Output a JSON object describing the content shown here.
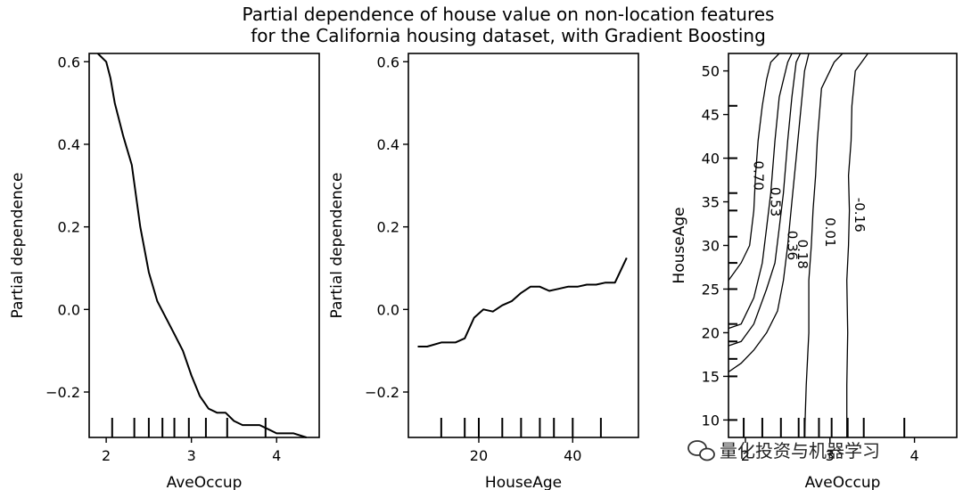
{
  "title_line1": "Partial dependence of house value on non-location features",
  "title_line2": "for the California housing dataset, with Gradient Boosting",
  "watermark": "量化投资与机器学习",
  "chart_data": [
    {
      "type": "line",
      "xlabel": "AveOccup",
      "ylabel": "Partial dependence",
      "xlim": [
        1.8,
        4.5
      ],
      "ylim": [
        -0.31,
        0.62
      ],
      "xticks": [
        "2",
        "3",
        "4"
      ],
      "yticks": [
        "−0.2",
        "0.0",
        "0.2",
        "0.4",
        "0.6"
      ],
      "x": [
        1.9,
        2.0,
        2.05,
        2.1,
        2.2,
        2.3,
        2.4,
        2.5,
        2.6,
        2.7,
        2.8,
        2.9,
        3.0,
        3.1,
        3.2,
        3.3,
        3.4,
        3.5,
        3.6,
        3.8,
        3.9,
        4.0,
        4.2,
        4.35
      ],
      "y": [
        0.62,
        0.6,
        0.56,
        0.5,
        0.42,
        0.35,
        0.2,
        0.09,
        0.02,
        -0.02,
        -0.06,
        -0.1,
        -0.16,
        -0.21,
        -0.24,
        -0.25,
        -0.25,
        -0.27,
        -0.28,
        -0.28,
        -0.29,
        -0.3,
        -0.3,
        -0.31
      ],
      "rug": [
        2.07,
        2.33,
        2.5,
        2.66,
        2.8,
        2.97,
        3.17,
        3.42,
        3.87
      ]
    },
    {
      "type": "line",
      "xlabel": "HouseAge",
      "ylabel": "Partial dependence",
      "xlim": [
        5,
        54
      ],
      "ylim": [
        -0.31,
        0.62
      ],
      "xticks": [
        "20",
        "40"
      ],
      "yticks": [
        "−0.2",
        "0.0",
        "0.2",
        "0.4",
        "0.6"
      ],
      "x": [
        7,
        9,
        12,
        15,
        17,
        19,
        21,
        23,
        25,
        27,
        29,
        31,
        33,
        35,
        37,
        39,
        41,
        43,
        45,
        47,
        49,
        51.5
      ],
      "y": [
        -0.09,
        -0.09,
        -0.08,
        -0.08,
        -0.07,
        -0.02,
        0.0,
        -0.005,
        0.01,
        0.02,
        0.04,
        0.055,
        0.055,
        0.045,
        0.05,
        0.055,
        0.055,
        0.06,
        0.06,
        0.065,
        0.065,
        0.125
      ],
      "rug": [
        12,
        17,
        20,
        25,
        29,
        33,
        36,
        40,
        46
      ]
    },
    {
      "type": "contour",
      "xlabel": "AveOccup",
      "ylabel": "HouseAge",
      "xlim": [
        1.8,
        4.5
      ],
      "ylim": [
        8,
        52
      ],
      "xticks": [
        "2",
        "3",
        "4"
      ],
      "yticks": [
        "10",
        "15",
        "20",
        "25",
        "30",
        "35",
        "40",
        "45",
        "50"
      ],
      "levels": [
        "0.70",
        "0.53",
        "0.36",
        "0.18",
        "0.01",
        "-0.16"
      ],
      "contours": [
        {
          "x": [
            1.8,
            1.95,
            2.05,
            2.1,
            2.12,
            2.15,
            2.2,
            2.25,
            2.3,
            2.4
          ],
          "y": [
            26,
            28,
            30,
            34,
            38,
            42,
            46,
            49,
            51,
            52
          ]
        },
        {
          "x": [
            1.8,
            1.95,
            2.1,
            2.2,
            2.25,
            2.3,
            2.35,
            2.4,
            2.5,
            2.55
          ],
          "y": [
            20.5,
            21,
            24,
            28,
            32,
            36,
            42,
            47,
            51,
            52
          ]
        },
        {
          "x": [
            1.8,
            1.95,
            2.1,
            2.25,
            2.35,
            2.4,
            2.45,
            2.5,
            2.55,
            2.6,
            2.65
          ],
          "y": [
            18.5,
            19,
            21,
            25,
            28,
            32,
            36,
            42,
            47,
            51,
            52
          ]
        },
        {
          "x": [
            1.8,
            1.95,
            2.1,
            2.25,
            2.38,
            2.45,
            2.5,
            2.55,
            2.6,
            2.65,
            2.7,
            2.75
          ],
          "y": [
            15.5,
            16.5,
            18,
            20,
            22.5,
            26,
            30,
            35,
            40,
            45,
            50,
            52
          ]
        },
        {
          "x": [
            2.7,
            2.72,
            2.75,
            2.75,
            2.78,
            2.8,
            2.83,
            2.85,
            2.9,
            3.05,
            3.15
          ],
          "y": [
            8,
            14,
            20,
            26,
            30,
            34,
            38,
            42,
            48,
            51,
            52
          ]
        },
        {
          "x": [
            3.2,
            3.2,
            3.21,
            3.2,
            3.22,
            3.23,
            3.22,
            3.25,
            3.26,
            3.3,
            3.45
          ],
          "y": [
            8,
            14,
            20,
            26,
            30,
            34,
            38,
            42,
            46,
            50,
            52
          ]
        }
      ],
      "rug_x": [
        1.98,
        2.2,
        2.42,
        2.63,
        2.7,
        2.87,
        3.02,
        3.21,
        3.4,
        3.88
      ],
      "rug_y": [
        10,
        15,
        17,
        19,
        21,
        25,
        28,
        31,
        34,
        36,
        40,
        46
      ]
    }
  ]
}
